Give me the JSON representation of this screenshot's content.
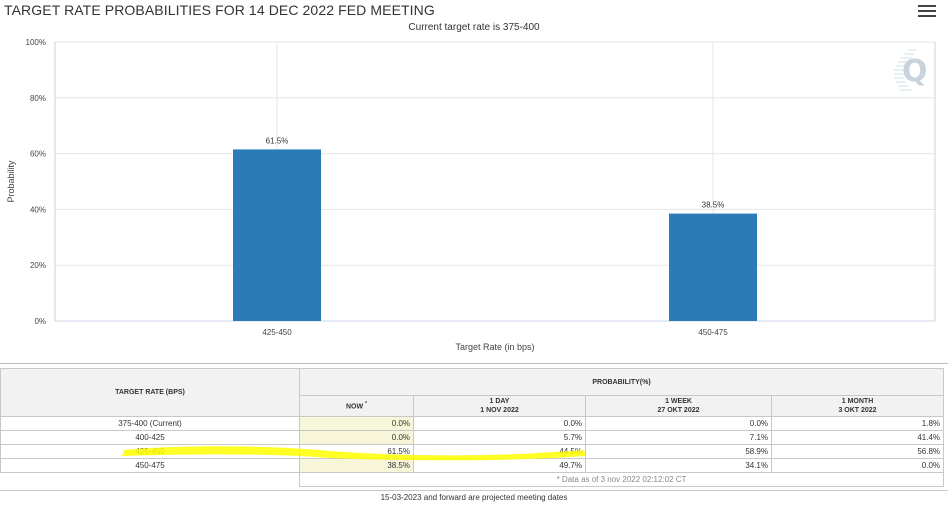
{
  "title": "TARGET RATE PROBABILITIES FOR 14 DEC 2022 FED MEETING",
  "subtitle": "Current target rate is 375-400",
  "menu_icon": "hamburger-menu-icon",
  "chart_data": {
    "type": "bar",
    "categories": [
      "425-450",
      "450-475"
    ],
    "values": [
      61.5,
      38.5
    ],
    "value_labels": [
      "61.5%",
      "38.5%"
    ],
    "xlabel": "Target Rate (in bps)",
    "ylabel": "Probability",
    "ylim": [
      0,
      100
    ],
    "yticks": [
      "0%",
      "20%",
      "40%",
      "60%",
      "80%",
      "100%"
    ],
    "bar_color": "#2b7bb9",
    "grid": true
  },
  "table": {
    "col_target": "TARGET RATE (BPS)",
    "col_prob": "PROBABILITY(%)",
    "sub_now": "NOW",
    "sub_now_mark": "*",
    "sub_1day": "1 DAY",
    "sub_1day_date": "1 NOV 2022",
    "sub_1week": "1 WEEK",
    "sub_1week_date": "27 OKT 2022",
    "sub_1month": "1 MONTH",
    "sub_1month_date": "3 OKT 2022",
    "rows": [
      {
        "rate": "375-400 (Current)",
        "now": "0.0%",
        "day": "0.0%",
        "week": "0.0%",
        "month": "1.8%"
      },
      {
        "rate": "400-425",
        "now": "0.0%",
        "day": "5.7%",
        "week": "7.1%",
        "month": "41.4%"
      },
      {
        "rate": "425-450",
        "now": "61.5%",
        "day": "44.5%",
        "week": "58.9%",
        "month": "56.8%"
      },
      {
        "rate": "450-475",
        "now": "38.5%",
        "day": "49.7%",
        "week": "34.1%",
        "month": "0.0%"
      }
    ],
    "data_note": "* Data as of 3 nov 2022 02:12:02 CT",
    "footer": "15-03-2023 and forward are projected meeting dates",
    "highlight_color": "#ffff00"
  }
}
